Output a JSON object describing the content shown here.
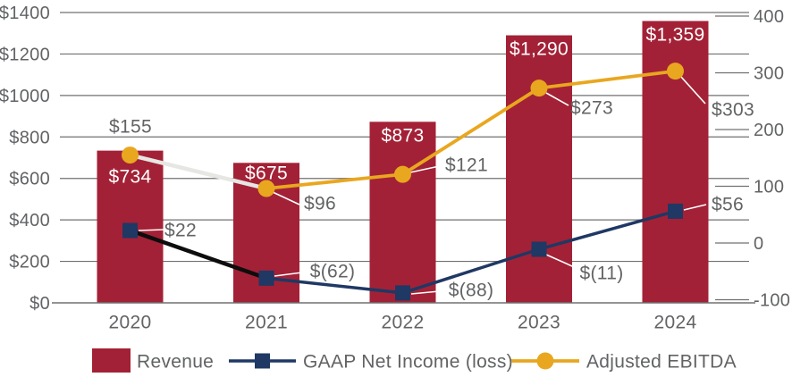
{
  "colors": {
    "bar": "#A32136",
    "net_income_line": "#1F3864",
    "net_income_first_segment": "#0D0D0D",
    "ebitda_line": "#E9A71F",
    "ebitda_first_segment": "#E6E6E3",
    "marker_gold": "#E9A71F",
    "marker_navy": "#1F3864",
    "grid_line": "#707070",
    "axis_text": "#616365",
    "data_label_text": "#616365",
    "bar_label_text": "#FFFFFF",
    "leader_line": "#FFFFFF",
    "background": "#FFFFFF"
  },
  "chart_data": {
    "type": "combo-bar-line",
    "title": "",
    "categories": [
      "2020",
      "2021",
      "2022",
      "2023",
      "2024"
    ],
    "series": [
      {
        "name": "Revenue",
        "type": "bar",
        "axis": "left",
        "values": [
          734,
          675,
          873,
          1290,
          1359
        ],
        "labels": [
          "$734",
          "$675",
          "$873",
          "$1,290",
          "$1,359"
        ]
      },
      {
        "name": "GAAP Net Income (loss)",
        "type": "line",
        "axis": "right",
        "marker": "square",
        "values": [
          22,
          -62,
          -88,
          -11,
          56
        ],
        "labels": [
          "$22",
          "$(62)",
          "$(88)",
          "$(11)",
          "$56"
        ]
      },
      {
        "name": "Adjusted EBITDA",
        "type": "line",
        "axis": "right",
        "marker": "circle",
        "values": [
          155,
          96,
          121,
          273,
          303
        ],
        "labels": [
          "$155",
          "$96",
          "$121",
          "$273",
          "$303"
        ]
      }
    ],
    "left_axis": {
      "min": 0,
      "max": 1400,
      "step": 200,
      "tick_labels": [
        "$0",
        "$200",
        "$400",
        "$600",
        "$800",
        "$1000",
        "$1200",
        "$1400"
      ]
    },
    "right_axis": {
      "min": -100,
      "max": 400,
      "step": 100,
      "tick_labels": [
        "-100",
        "0",
        "100",
        "200",
        "300",
        "400"
      ]
    },
    "grid": true,
    "legend_position": "bottom"
  },
  "legend": {
    "items": [
      {
        "label": "Revenue",
        "swatch": "bar"
      },
      {
        "label": "GAAP Net Income (loss)",
        "swatch": "line-square"
      },
      {
        "label": "Adjusted EBITDA",
        "swatch": "line-circle"
      }
    ]
  }
}
